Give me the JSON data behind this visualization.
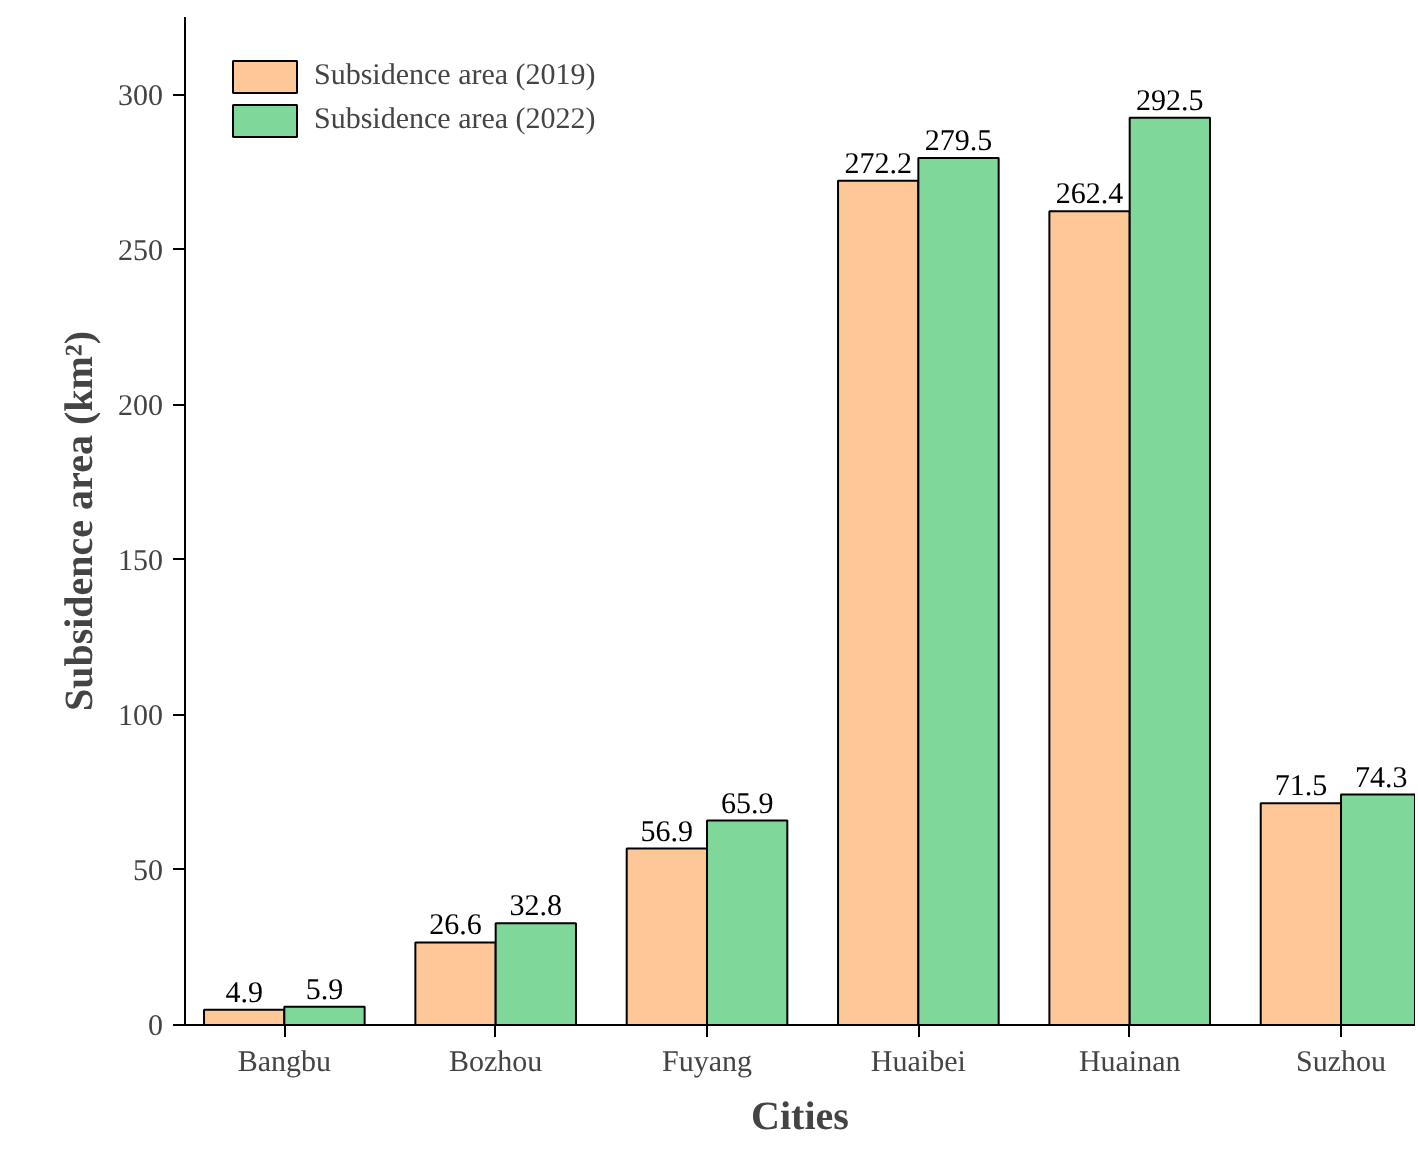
{
  "chart_data": {
    "type": "bar",
    "xlabel": "Cities",
    "ylabel": "Subsidence area (km²)",
    "categories": [
      "Bangbu",
      "Bozhou",
      "Fuyang",
      "Huaibei",
      "Huainan",
      "Suzhou"
    ],
    "series": [
      {
        "name": "Subsidence area (2019)",
        "color": "#fdc797",
        "values": [
          4.9,
          26.6,
          56.9,
          272.2,
          262.4,
          71.5
        ]
      },
      {
        "name": "Subsidence area (2022)",
        "color": "#7fd89a",
        "values": [
          5.9,
          32.8,
          65.9,
          279.5,
          292.5,
          74.3
        ]
      }
    ],
    "ylim": [
      0,
      325
    ],
    "yticks": [
      0,
      50,
      100,
      150,
      200,
      250,
      300
    ],
    "data_labels": true,
    "legend": "top left",
    "grid": false
  }
}
